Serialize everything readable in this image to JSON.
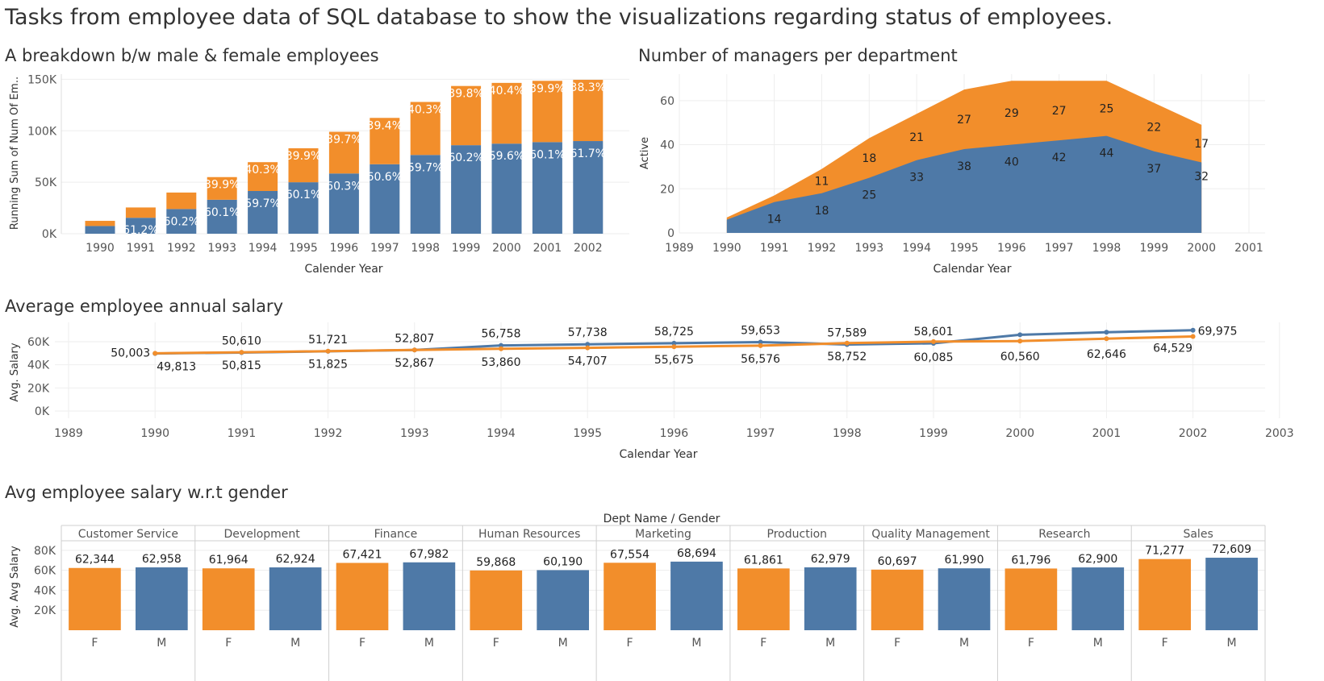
{
  "page": {
    "title": "Tasks from employee data of SQL database to show the visualizations regarding status of employees."
  },
  "colors": {
    "male": "#4e79a7",
    "female": "#f28e2b"
  },
  "chart_data": [
    {
      "id": "gender-breakdown",
      "type": "bar",
      "stacked": true,
      "title": "A breakdown b/w male & female employees",
      "xlabel": "Calender Year",
      "ylabel": "Running Sum of Num Of Em..",
      "ylim": [
        0,
        155000
      ],
      "yticks": [
        0,
        50000,
        100000,
        150000
      ],
      "ytick_labels": [
        "0K",
        "50K",
        "100K",
        "150K"
      ],
      "categories": [
        "1990",
        "1991",
        "1992",
        "1993",
        "1994",
        "1995",
        "1996",
        "1997",
        "1998",
        "1999",
        "2000",
        "2001",
        "2002"
      ],
      "series": [
        {
          "color": "#4e79a7",
          "values": [
            7500,
            15500,
            24000,
            33000,
            41500,
            50000,
            58500,
            67500,
            76500,
            86000,
            87500,
            89000,
            90000
          ],
          "labels": [
            "",
            "61.2%",
            "60.2%",
            "60.1%",
            "59.7%",
            "60.1%",
            "60.3%",
            "60.6%",
            "59.7%",
            "60.2%",
            "59.6%",
            "60.1%",
            "61.7%"
          ]
        },
        {
          "color": "#f28e2b",
          "values": [
            5000,
            10000,
            16000,
            22000,
            28000,
            33000,
            40500,
            45000,
            51500,
            57500,
            59000,
            59500,
            59500
          ],
          "labels": [
            "",
            "",
            "",
            "39.9%",
            "40.3%",
            "39.9%",
            "39.7%",
            "39.4%",
            "40.3%",
            "39.8%",
            "40.4%",
            "39.9%",
            "38.3%"
          ]
        }
      ]
    },
    {
      "id": "managers-per-dept",
      "type": "area",
      "stacked": true,
      "title": "Number of managers per department",
      "xlabel": "Calendar Year",
      "ylabel": "Active",
      "xlim": [
        1989,
        2001
      ],
      "xticks": [
        "1989",
        "1990",
        "1991",
        "1992",
        "1993",
        "1994",
        "1995",
        "1996",
        "1997",
        "1998",
        "1999",
        "2000",
        "2001"
      ],
      "ylim": [
        0,
        72
      ],
      "yticks": [
        0,
        20,
        40,
        60
      ],
      "ytick_labels": [
        "0",
        "20",
        "40",
        "60"
      ],
      "x": [
        1990,
        1991,
        1992,
        1993,
        1994,
        1995,
        1996,
        1997,
        1998,
        1999,
        2000
      ],
      "series": [
        {
          "color": "#4e79a7",
          "values": [
            6,
            14,
            18,
            25,
            33,
            38,
            40,
            42,
            44,
            37,
            32
          ],
          "labels": [
            "",
            "14",
            "18",
            "25",
            "33",
            "38",
            "40",
            "42",
            "44",
            "37",
            "32"
          ]
        },
        {
          "color": "#f28e2b",
          "values": [
            1,
            3,
            11,
            18,
            21,
            27,
            29,
            27,
            25,
            22,
            17
          ],
          "labels": [
            "",
            "",
            "11",
            "18",
            "21",
            "27",
            "29",
            "27",
            "25",
            "22",
            "17"
          ]
        }
      ]
    },
    {
      "id": "avg-annual-salary",
      "type": "line",
      "title": "Average employee annual salary",
      "xlabel": "Calendar Year",
      "ylabel": "Avg. Salary",
      "xlim": [
        1989,
        2003
      ],
      "xticks": [
        "1989",
        "1990",
        "1991",
        "1992",
        "1993",
        "1994",
        "1995",
        "1996",
        "1997",
        "1998",
        "1999",
        "2000",
        "2001",
        "2002",
        "2003"
      ],
      "ylim": [
        0,
        70000
      ],
      "yticks": [
        0,
        20000,
        40000,
        60000
      ],
      "ytick_labels": [
        "0K",
        "20K",
        "40K",
        "60K"
      ],
      "x": [
        1990,
        1991,
        1992,
        1993,
        1994,
        1995,
        1996,
        1997,
        1998,
        1999,
        2000,
        2001,
        2002
      ],
      "series": [
        {
          "color": "#4e79a7",
          "values": [
            49813,
            50610,
            51721,
            52807,
            56758,
            57738,
            58725,
            59653,
            57589,
            58601,
            66000,
            68200,
            69975
          ],
          "labels": [
            "49,813",
            "50,610",
            "51,721",
            "52,807",
            "56,758",
            "57,738",
            "58,725",
            "59,653",
            "57,589",
            "58,601",
            "",
            "",
            "69,975"
          ]
        },
        {
          "color": "#f28e2b",
          "values": [
            50003,
            50815,
            51825,
            52867,
            53860,
            54707,
            55675,
            56576,
            58752,
            60085,
            60560,
            62646,
            64529
          ],
          "labels": [
            "50,003",
            "50,815",
            "51,825",
            "52,867",
            "53,860",
            "54,707",
            "55,675",
            "56,576",
            "58,752",
            "60,085",
            "60,560",
            "62,646",
            "64,529"
          ]
        }
      ]
    },
    {
      "id": "salary-by-gender",
      "type": "bar",
      "title": "Avg employee salary w.r.t gender",
      "header": "Dept Name  /  Gender",
      "ylabel": "Avg. Avg Salary",
      "ylim": [
        0,
        92000
      ],
      "yticks": [
        20000,
        40000,
        60000,
        80000
      ],
      "ytick_labels": [
        "20K",
        "40K",
        "60K",
        "80K"
      ],
      "departments": [
        "Customer Service",
        "Development",
        "Finance",
        "Human Resources",
        "Marketing",
        "Production",
        "Quality Management",
        "Research",
        "Sales"
      ],
      "genders": [
        "F",
        "M"
      ],
      "series": [
        {
          "color": "#f28e2b",
          "gender": "F",
          "values": [
            62344,
            61964,
            67421,
            59868,
            67554,
            61861,
            60697,
            61796,
            71277
          ],
          "labels": [
            "62,344",
            "61,964",
            "67,421",
            "59,868",
            "67,554",
            "61,861",
            "60,697",
            "61,796",
            "71,277"
          ]
        },
        {
          "color": "#4e79a7",
          "gender": "M",
          "values": [
            62958,
            62924,
            67982,
            60190,
            68694,
            62979,
            61990,
            62900,
            72609
          ],
          "labels": [
            "62,958",
            "62,924",
            "67,982",
            "60,190",
            "68,694",
            "62,979",
            "61,990",
            "62,900",
            "72,609"
          ]
        }
      ]
    }
  ]
}
